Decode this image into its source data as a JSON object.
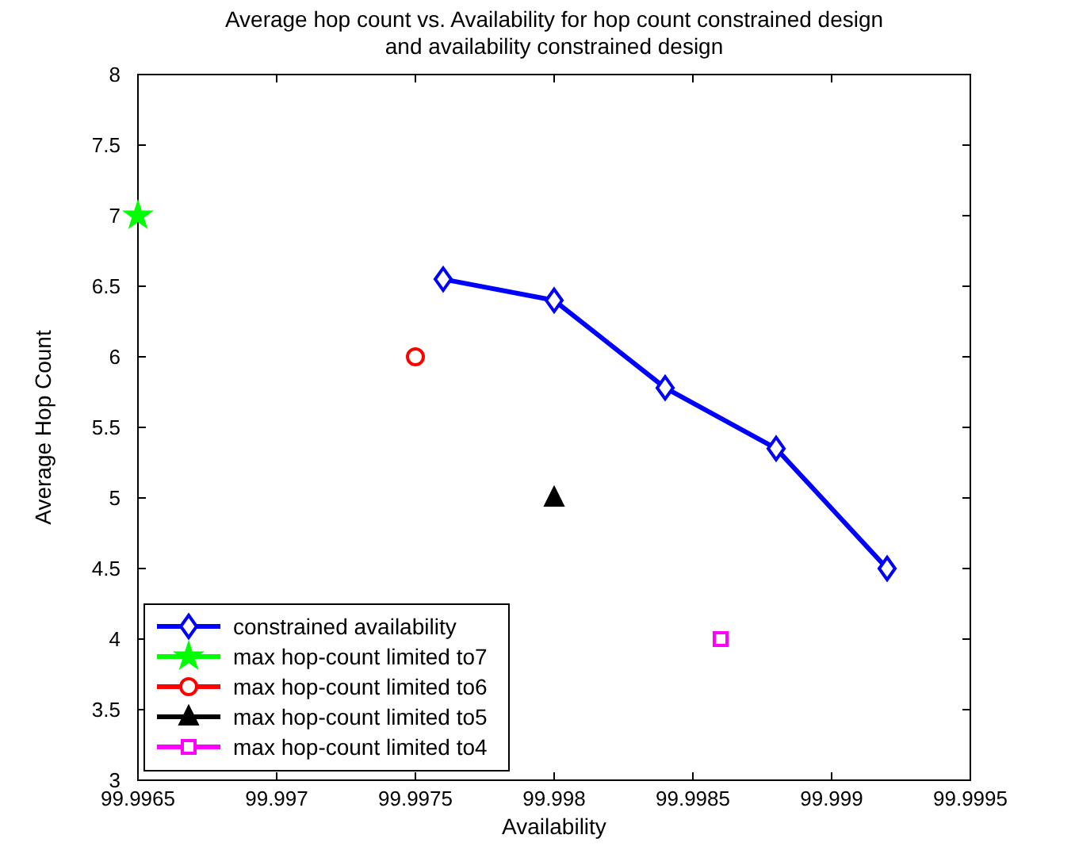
{
  "chart_data": {
    "type": "line",
    "title": "Average hop count vs. Availability for hop count constrained design\nand availability constrained design",
    "xlabel": "Availability",
    "ylabel": "Average Hop Count",
    "xlim": [
      99.9965,
      99.9995
    ],
    "xticks": [
      99.9965,
      99.997,
      99.9975,
      99.998,
      99.9985,
      99.999,
      99.9995
    ],
    "ylim": [
      3,
      8
    ],
    "yticks": [
      3,
      3.5,
      4,
      4.5,
      5,
      5.5,
      6,
      6.5,
      7,
      7.5,
      8
    ],
    "grid": false,
    "legend": "bottom left",
    "series": [
      {
        "name": "constrained availability",
        "marker": "diamond",
        "color": "#0000ff",
        "x": [
          99.9976,
          99.998,
          99.9984,
          99.9988,
          99.9992
        ],
        "values": [
          6.55,
          6.4,
          5.78,
          5.35,
          4.5
        ]
      },
      {
        "name": "max hop-count limited to7",
        "type": "scatter",
        "marker": "star",
        "color": "#00ff00",
        "x": [
          99.9965
        ],
        "values": [
          7
        ]
      },
      {
        "name": "max hop-count limited to6",
        "type": "scatter",
        "marker": "circle",
        "color": "#ff0000",
        "x": [
          99.9975
        ],
        "values": [
          6
        ]
      },
      {
        "name": "max hop-count limited to5",
        "type": "scatter",
        "marker": "triangle",
        "color": "#000000",
        "x": [
          99.998
        ],
        "values": [
          5
        ]
      },
      {
        "name": "max hop-count limited to4",
        "type": "scatter",
        "marker": "square",
        "color": "#ff00ff",
        "x": [
          99.9986
        ],
        "values": [
          4
        ]
      }
    ]
  }
}
